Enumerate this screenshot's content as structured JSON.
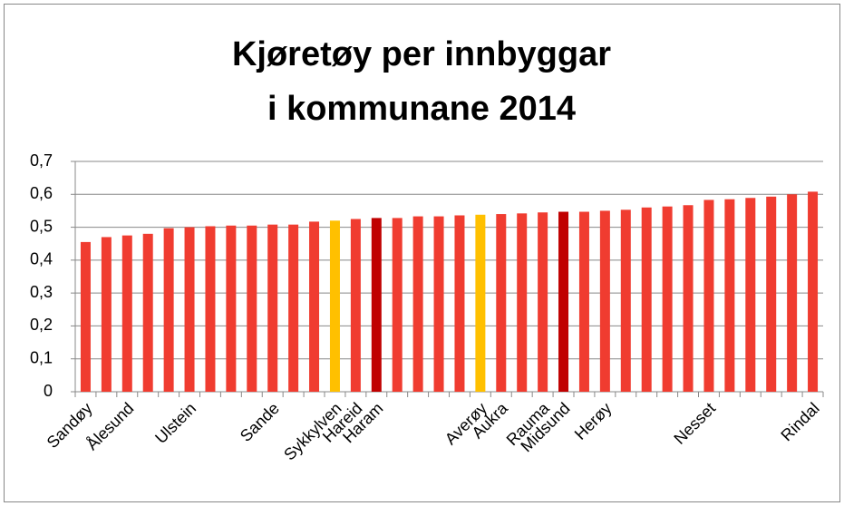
{
  "chart_data": {
    "type": "bar",
    "title": [
      "Kjøretøy per innbyggar",
      "i kommunane 2014"
    ],
    "categories": [
      "Sandøy",
      null,
      "Ålesund",
      null,
      null,
      "Ulstein",
      null,
      null,
      null,
      "Sande",
      null,
      null,
      "Sykkylven",
      "Hareid",
      "Haram",
      null,
      null,
      null,
      null,
      "Averøy",
      "Aukra",
      null,
      "Rauma",
      "Midsund",
      null,
      "Herøy",
      null,
      null,
      null,
      null,
      "Nesset",
      null,
      null,
      null,
      null,
      "Rindal"
    ],
    "values": [
      0.455,
      0.47,
      0.475,
      0.48,
      0.497,
      0.5,
      0.503,
      0.505,
      0.505,
      0.508,
      0.508,
      0.517,
      0.52,
      0.525,
      0.528,
      0.528,
      0.533,
      0.533,
      0.536,
      0.538,
      0.54,
      0.542,
      0.545,
      0.547,
      0.547,
      0.55,
      0.553,
      0.56,
      0.563,
      0.567,
      0.583,
      0.585,
      0.589,
      0.593,
      0.6,
      0.608
    ],
    "colors": [
      "#f03c30",
      "#f03c30",
      "#f03c30",
      "#f03c30",
      "#f03c30",
      "#f03c30",
      "#f03c30",
      "#f03c30",
      "#f03c30",
      "#f03c30",
      "#f03c30",
      "#f03c30",
      "#ffc000",
      "#f03c30",
      "#c00000",
      "#f03c30",
      "#f03c30",
      "#f03c30",
      "#f03c30",
      "#ffc000",
      "#f03c30",
      "#f03c30",
      "#f03c30",
      "#c00000",
      "#f03c30",
      "#f03c30",
      "#f03c30",
      "#f03c30",
      "#f03c30",
      "#f03c30",
      "#f03c30",
      "#f03c30",
      "#f03c30",
      "#f03c30",
      "#f03c30",
      "#f03c30"
    ],
    "ylim": [
      0,
      0.7
    ],
    "yticks": [
      0,
      {
        "value": 0.1,
        "label": "0,1"
      },
      {
        "value": 0.2,
        "label": "0,2"
      },
      {
        "value": 0.3,
        "label": "0,3"
      },
      {
        "value": 0.4,
        "label": "0,4"
      },
      {
        "value": 0.5,
        "label": "0,5"
      },
      {
        "value": 0.6,
        "label": "0,6"
      },
      {
        "value": 0.7,
        "label": "0,7"
      }
    ],
    "grid": true
  }
}
